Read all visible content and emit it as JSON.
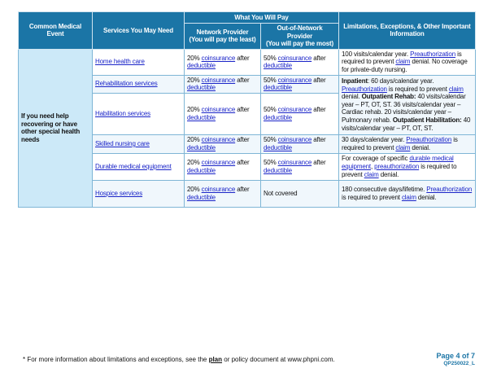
{
  "header": {
    "common_event": "Common Medical Event",
    "services": "Services You May Need",
    "what_you_pay": "What You Will Pay",
    "network": "Network Provider",
    "network_sub": "(You will pay the least)",
    "out_network": "Out-of-Network Provider",
    "out_network_sub": "(You will pay the most)",
    "limitations": "Limitations, Exceptions, & Other Important Information"
  },
  "event": "If you need help recovering or have other special health needs",
  "rows": [
    {
      "service": "Home health care",
      "network": [
        {
          "t": "20% "
        },
        {
          "t": "coinsurance",
          "s": "link"
        },
        {
          "t": " after "
        },
        {
          "t": "deductible",
          "s": "link"
        }
      ],
      "out": [
        {
          "t": "50% "
        },
        {
          "t": "coinsurance",
          "s": "link"
        },
        {
          "t": " after "
        },
        {
          "t": "deductible",
          "s": "link"
        }
      ],
      "limits": [
        {
          "t": "100 visits/calendar year. "
        },
        {
          "t": "Preauthorization",
          "s": "link"
        },
        {
          "t": " is required to prevent "
        },
        {
          "t": "claim",
          "s": "link"
        },
        {
          "t": " denial. No coverage for private-duty nursing."
        }
      ]
    },
    {
      "service": "Rehabilitation services",
      "network": [
        {
          "t": "20% "
        },
        {
          "t": "coinsurance",
          "s": "link"
        },
        {
          "t": " after "
        },
        {
          "t": "deductible",
          "s": "link"
        }
      ],
      "out": [
        {
          "t": "50% "
        },
        {
          "t": "coinsurance",
          "s": "link"
        },
        {
          "t": " after "
        },
        {
          "t": "deductible",
          "s": "link"
        }
      ],
      "limits": [
        {
          "t": "Inpatient",
          "s": "bold"
        },
        {
          "t": ": 60 days/calendar year. "
        },
        {
          "t": "Preauthorization",
          "s": "link"
        },
        {
          "t": " is required to prevent "
        },
        {
          "t": "claim",
          "s": "link"
        },
        {
          "t": " denial. "
        },
        {
          "t": "Outpatient Rehab:",
          "s": "bold"
        },
        {
          "t": " 40 visits/calendar year – PT, OT, ST. 36 visits/calendar year – Cardiac rehab. 20 visits/calendar year – Pulmonary rehab.  "
        },
        {
          "t": "Outpatient Habilitation:",
          "s": "bold"
        },
        {
          "t": " 40 visits/calendar year – PT, OT, ST."
        }
      ]
    },
    {
      "service": "Habilitation services",
      "network": [
        {
          "t": "20% "
        },
        {
          "t": "coinsurance",
          "s": "link"
        },
        {
          "t": " after "
        },
        {
          "t": "deductible",
          "s": "link"
        }
      ],
      "out": [
        {
          "t": "50% "
        },
        {
          "t": "coinsurance",
          "s": "link"
        },
        {
          "t": " after "
        },
        {
          "t": "deductible",
          "s": "link"
        }
      ]
    },
    {
      "service": "Skilled nursing care",
      "network": [
        {
          "t": "20% "
        },
        {
          "t": "coinsurance",
          "s": "link"
        },
        {
          "t": " after "
        },
        {
          "t": "deductible",
          "s": "link"
        }
      ],
      "out": [
        {
          "t": "50% "
        },
        {
          "t": "coinsurance",
          "s": "link"
        },
        {
          "t": " after "
        },
        {
          "t": "deductible",
          "s": "link"
        }
      ],
      "limits": [
        {
          "t": "30 days/calendar year. "
        },
        {
          "t": "Preauthorization",
          "s": "link"
        },
        {
          "t": " is required to prevent "
        },
        {
          "t": "claim",
          "s": "link"
        },
        {
          "t": " denial."
        }
      ]
    },
    {
      "service": "Durable medical equipment",
      "network": [
        {
          "t": "20% "
        },
        {
          "t": "coinsurance",
          "s": "link"
        },
        {
          "t": " after "
        },
        {
          "t": "deductible",
          "s": "link"
        }
      ],
      "out": [
        {
          "t": "50% "
        },
        {
          "t": "coinsurance",
          "s": "link"
        },
        {
          "t": " after "
        },
        {
          "t": "deductible",
          "s": "link"
        }
      ],
      "limits": [
        {
          "t": "For coverage of specific "
        },
        {
          "t": "durable medical equipment",
          "s": "link"
        },
        {
          "t": ", "
        },
        {
          "t": "preauthorization",
          "s": "link"
        },
        {
          "t": " is required to prevent "
        },
        {
          "t": "claim",
          "s": "link"
        },
        {
          "t": " denial."
        }
      ]
    },
    {
      "service": "Hospice services",
      "network": [
        {
          "t": "20% "
        },
        {
          "t": "coinsurance",
          "s": "link"
        },
        {
          "t": " after "
        },
        {
          "t": "deductible",
          "s": "link"
        }
      ],
      "out": [
        {
          "t": "Not covered"
        }
      ],
      "limits": [
        {
          "t": "180 consecutive days/lifetime. "
        },
        {
          "t": "Preauthorization",
          "s": "link"
        },
        {
          "t": " is required to prevent "
        },
        {
          "t": "claim",
          "s": "link"
        },
        {
          "t": " denial."
        }
      ]
    }
  ],
  "footer": {
    "pre": "* For more information about limitations and exceptions, see the ",
    "plan": "plan",
    "post": " or policy document at www.phpni.com.",
    "page": "Page 4 of 7",
    "code": "QP250022_L"
  },
  "colors": {
    "header_bg": "#1b75a6",
    "event_bg": "#cce9f8",
    "link": "#1a24c8"
  }
}
